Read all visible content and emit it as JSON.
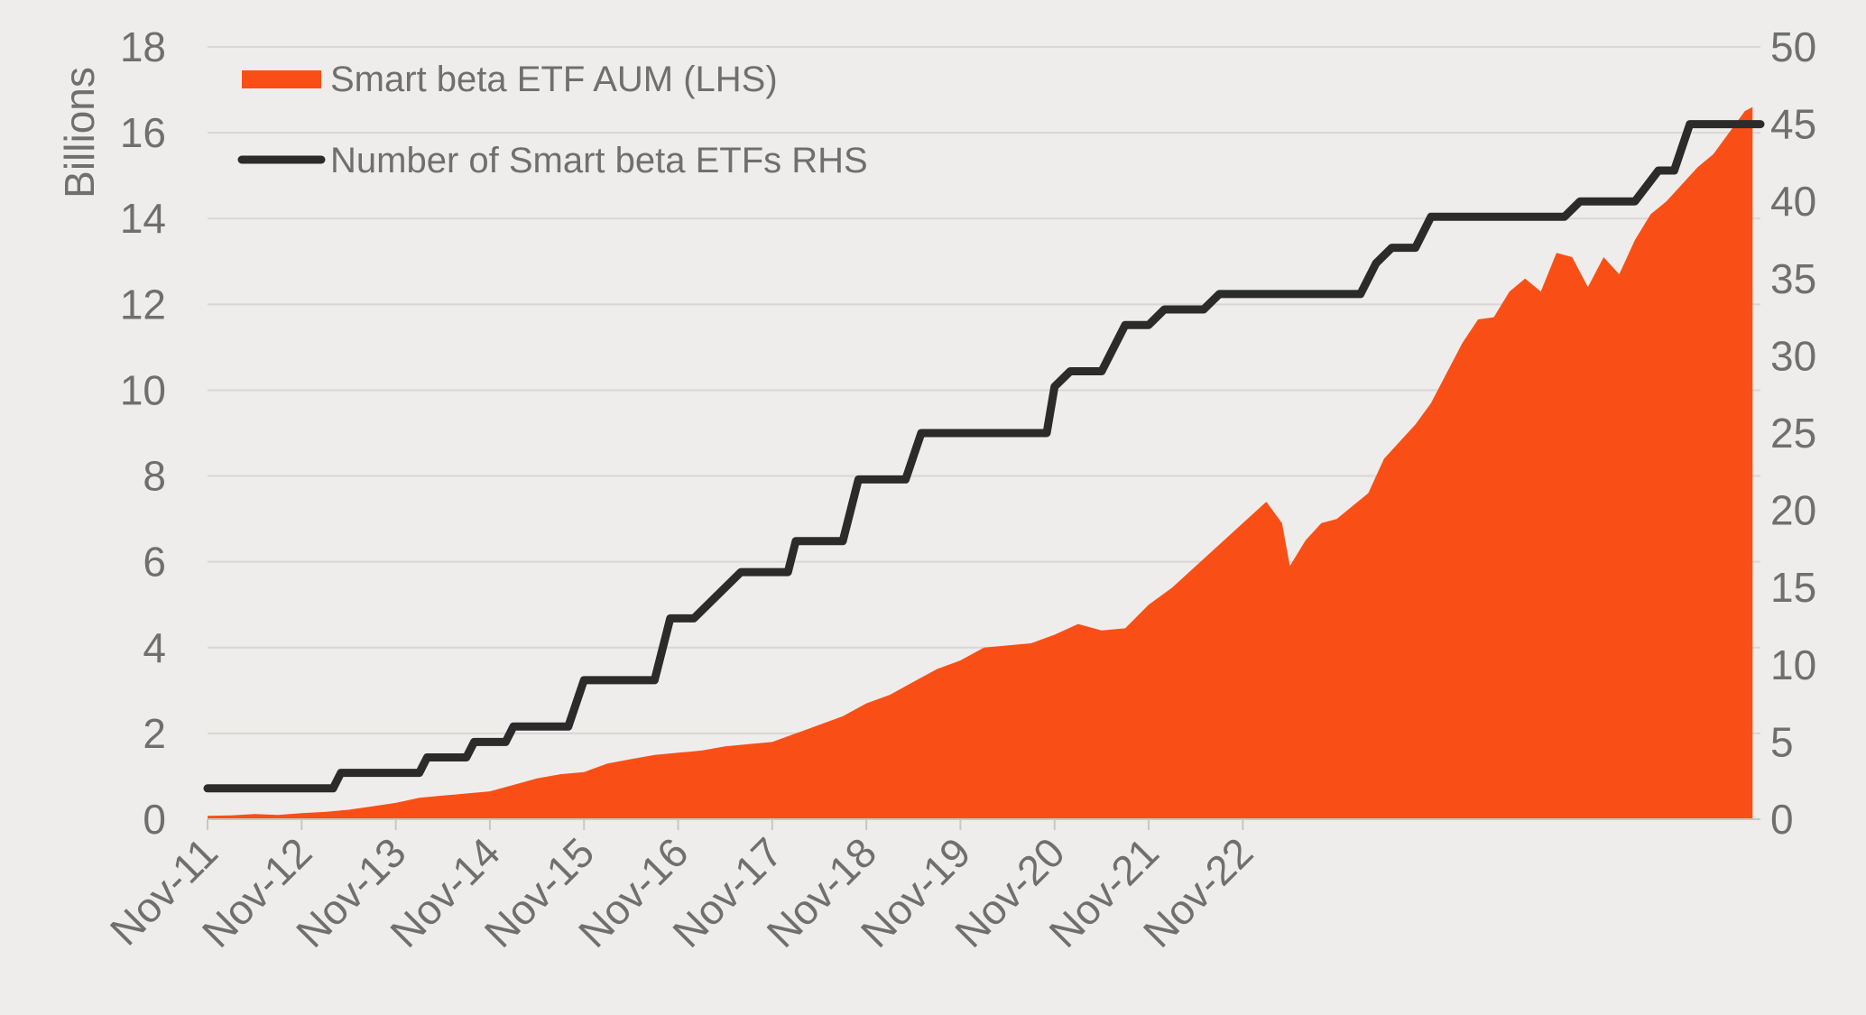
{
  "chart_data": {
    "type": "area",
    "ylabel": "Billions",
    "ylim": [
      0,
      18
    ],
    "y_ticks": [
      "0",
      "2",
      "4",
      "6",
      "8",
      "10",
      "12",
      "14",
      "16",
      "18"
    ],
    "y2lim": [
      0,
      50
    ],
    "y2_ticks": [
      "0",
      "5",
      "10",
      "15",
      "20",
      "25",
      "30",
      "35",
      "40",
      "45",
      "50"
    ],
    "x_ticks": [
      "Nov-11",
      "Nov-12",
      "Nov-13",
      "Nov-14",
      "Nov-15",
      "Nov-16",
      "Nov-17",
      "Nov-18",
      "Nov-19",
      "Nov-20",
      "Nov-21",
      "Nov-22"
    ],
    "grid": true,
    "legend_position": "top-left",
    "colors": {
      "aum": "#f94f17",
      "count": "#2b2b2b",
      "background": "#efedeb",
      "text": "#6f6f6f"
    },
    "series": [
      {
        "name": "Smart beta ETF AUM (LHS)",
        "kind": "area",
        "axis": "left",
        "points": [
          [
            0,
            0.08
          ],
          [
            3,
            0.09
          ],
          [
            6,
            0.12
          ],
          [
            9,
            0.1
          ],
          [
            12,
            0.14
          ],
          [
            15,
            0.17
          ],
          [
            18,
            0.22
          ],
          [
            21,
            0.3
          ],
          [
            24,
            0.38
          ],
          [
            27,
            0.5
          ],
          [
            30,
            0.55
          ],
          [
            33,
            0.6
          ],
          [
            36,
            0.65
          ],
          [
            39,
            0.8
          ],
          [
            42,
            0.95
          ],
          [
            45,
            1.05
          ],
          [
            48,
            1.1
          ],
          [
            51,
            1.3
          ],
          [
            54,
            1.4
          ],
          [
            57,
            1.5
          ],
          [
            60,
            1.55
          ],
          [
            63,
            1.6
          ],
          [
            66,
            1.7
          ],
          [
            69,
            1.75
          ],
          [
            72,
            1.8
          ],
          [
            75,
            2.0
          ],
          [
            78,
            2.2
          ],
          [
            81,
            2.4
          ],
          [
            84,
            2.7
          ],
          [
            87,
            2.9
          ],
          [
            90,
            3.2
          ],
          [
            93,
            3.5
          ],
          [
            96,
            3.7
          ],
          [
            99,
            4.0
          ],
          [
            102,
            4.05
          ],
          [
            105,
            4.1
          ],
          [
            108,
            4.3
          ],
          [
            111,
            4.55
          ],
          [
            114,
            4.4
          ],
          [
            117,
            4.45
          ],
          [
            120,
            5.0
          ],
          [
            123,
            5.4
          ],
          [
            126,
            5.9
          ],
          [
            129,
            6.4
          ],
          [
            132,
            6.9
          ],
          [
            135,
            7.4
          ],
          [
            137,
            6.9
          ],
          [
            138,
            5.9
          ],
          [
            140,
            6.5
          ],
          [
            142,
            6.9
          ],
          [
            144,
            7.0
          ],
          [
            146,
            7.3
          ],
          [
            148,
            7.6
          ],
          [
            150,
            8.4
          ],
          [
            152,
            8.8
          ],
          [
            154,
            9.2
          ],
          [
            156,
            9.7
          ],
          [
            158,
            10.4
          ],
          [
            160,
            11.1
          ],
          [
            162,
            11.65
          ],
          [
            164,
            11.7
          ],
          [
            166,
            12.3
          ],
          [
            168,
            12.6
          ],
          [
            170,
            12.3
          ],
          [
            172,
            13.2
          ],
          [
            174,
            13.1
          ],
          [
            176,
            12.4
          ],
          [
            178,
            13.1
          ],
          [
            180,
            12.7
          ],
          [
            182,
            13.5
          ],
          [
            184,
            14.1
          ],
          [
            186,
            14.4
          ],
          [
            188,
            14.8
          ],
          [
            190,
            15.2
          ],
          [
            192,
            15.5
          ],
          [
            194,
            16.0
          ],
          [
            196,
            16.5
          ],
          [
            197,
            16.6
          ]
        ]
      },
      {
        "name": "Number of Smart beta ETFs RHS",
        "kind": "step-line",
        "axis": "right",
        "points": [
          [
            0,
            2
          ],
          [
            16,
            2
          ],
          [
            17,
            3
          ],
          [
            27,
            3
          ],
          [
            28,
            4
          ],
          [
            33,
            4
          ],
          [
            34,
            5
          ],
          [
            38,
            5
          ],
          [
            39,
            6
          ],
          [
            46,
            6
          ],
          [
            48,
            9
          ],
          [
            57,
            9
          ],
          [
            59,
            13
          ],
          [
            62,
            13
          ],
          [
            64,
            14
          ],
          [
            66,
            15
          ],
          [
            68,
            16
          ],
          [
            74,
            16
          ],
          [
            75,
            18
          ],
          [
            81,
            18
          ],
          [
            83,
            22
          ],
          [
            89,
            22
          ],
          [
            91,
            25
          ],
          [
            107,
            25
          ],
          [
            108,
            28
          ],
          [
            110,
            29
          ],
          [
            114,
            29
          ],
          [
            117,
            32
          ],
          [
            120,
            32
          ],
          [
            122,
            33
          ],
          [
            127,
            33
          ],
          [
            129,
            34
          ],
          [
            147,
            34
          ],
          [
            149,
            36
          ],
          [
            151,
            37
          ],
          [
            154,
            37
          ],
          [
            156,
            39
          ],
          [
            173,
            39
          ],
          [
            175,
            40
          ],
          [
            182,
            40
          ],
          [
            185,
            42
          ],
          [
            187,
            42
          ],
          [
            189,
            45
          ],
          [
            198,
            45
          ]
        ]
      }
    ]
  }
}
